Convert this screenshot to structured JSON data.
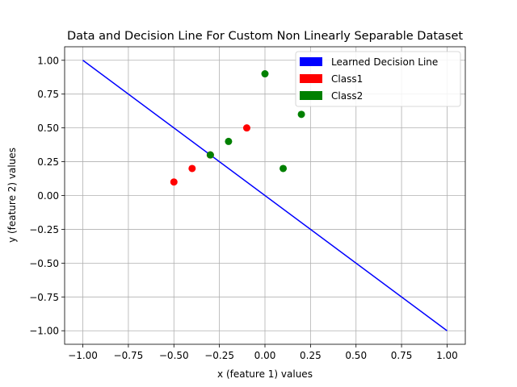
{
  "chart_data": {
    "type": "scatter",
    "title": "Data and Decision Line For Custom Non Linearly Separable Dataset",
    "xlabel": "x (feature 1) values",
    "ylabel": "y (feature 2) values",
    "xlim": [
      -1.1,
      1.1
    ],
    "ylim": [
      -1.1,
      1.1
    ],
    "grid": true,
    "legend_position": "top-right",
    "x_ticks": [
      -1.0,
      -0.75,
      -0.5,
      -0.25,
      0.0,
      0.25,
      0.5,
      0.75,
      1.0
    ],
    "x_tick_labels": [
      "−1.00",
      "−0.75",
      "−0.50",
      "−0.25",
      "0.00",
      "0.25",
      "0.50",
      "0.75",
      "1.00"
    ],
    "y_ticks": [
      -1.0,
      -0.75,
      -0.5,
      -0.25,
      0.0,
      0.25,
      0.5,
      0.75,
      1.0
    ],
    "y_tick_labels": [
      "−1.00",
      "−0.75",
      "−0.50",
      "−0.25",
      "0.00",
      "0.25",
      "0.50",
      "0.75",
      "1.00"
    ],
    "decision_line": {
      "name": "Learned Decision Line",
      "color": "#0000ff",
      "x": [
        -1.0,
        1.0
      ],
      "y": [
        1.0,
        -1.0
      ]
    },
    "series": [
      {
        "name": "Class1",
        "color": "#ff0000",
        "points": [
          [
            -0.5,
            0.1
          ],
          [
            -0.4,
            0.2
          ],
          [
            -0.3,
            0.3
          ],
          [
            -0.1,
            0.5
          ]
        ]
      },
      {
        "name": "Class2",
        "color": "#008000",
        "points": [
          [
            -0.3,
            0.3
          ],
          [
            -0.2,
            0.4
          ],
          [
            0.0,
            0.9
          ],
          [
            0.1,
            0.2
          ],
          [
            0.2,
            0.6
          ]
        ]
      }
    ],
    "legend": [
      {
        "label": "Learned Decision Line",
        "color": "#0000ff"
      },
      {
        "label": "Class1",
        "color": "#ff0000"
      },
      {
        "label": "Class2",
        "color": "#008000"
      }
    ]
  }
}
